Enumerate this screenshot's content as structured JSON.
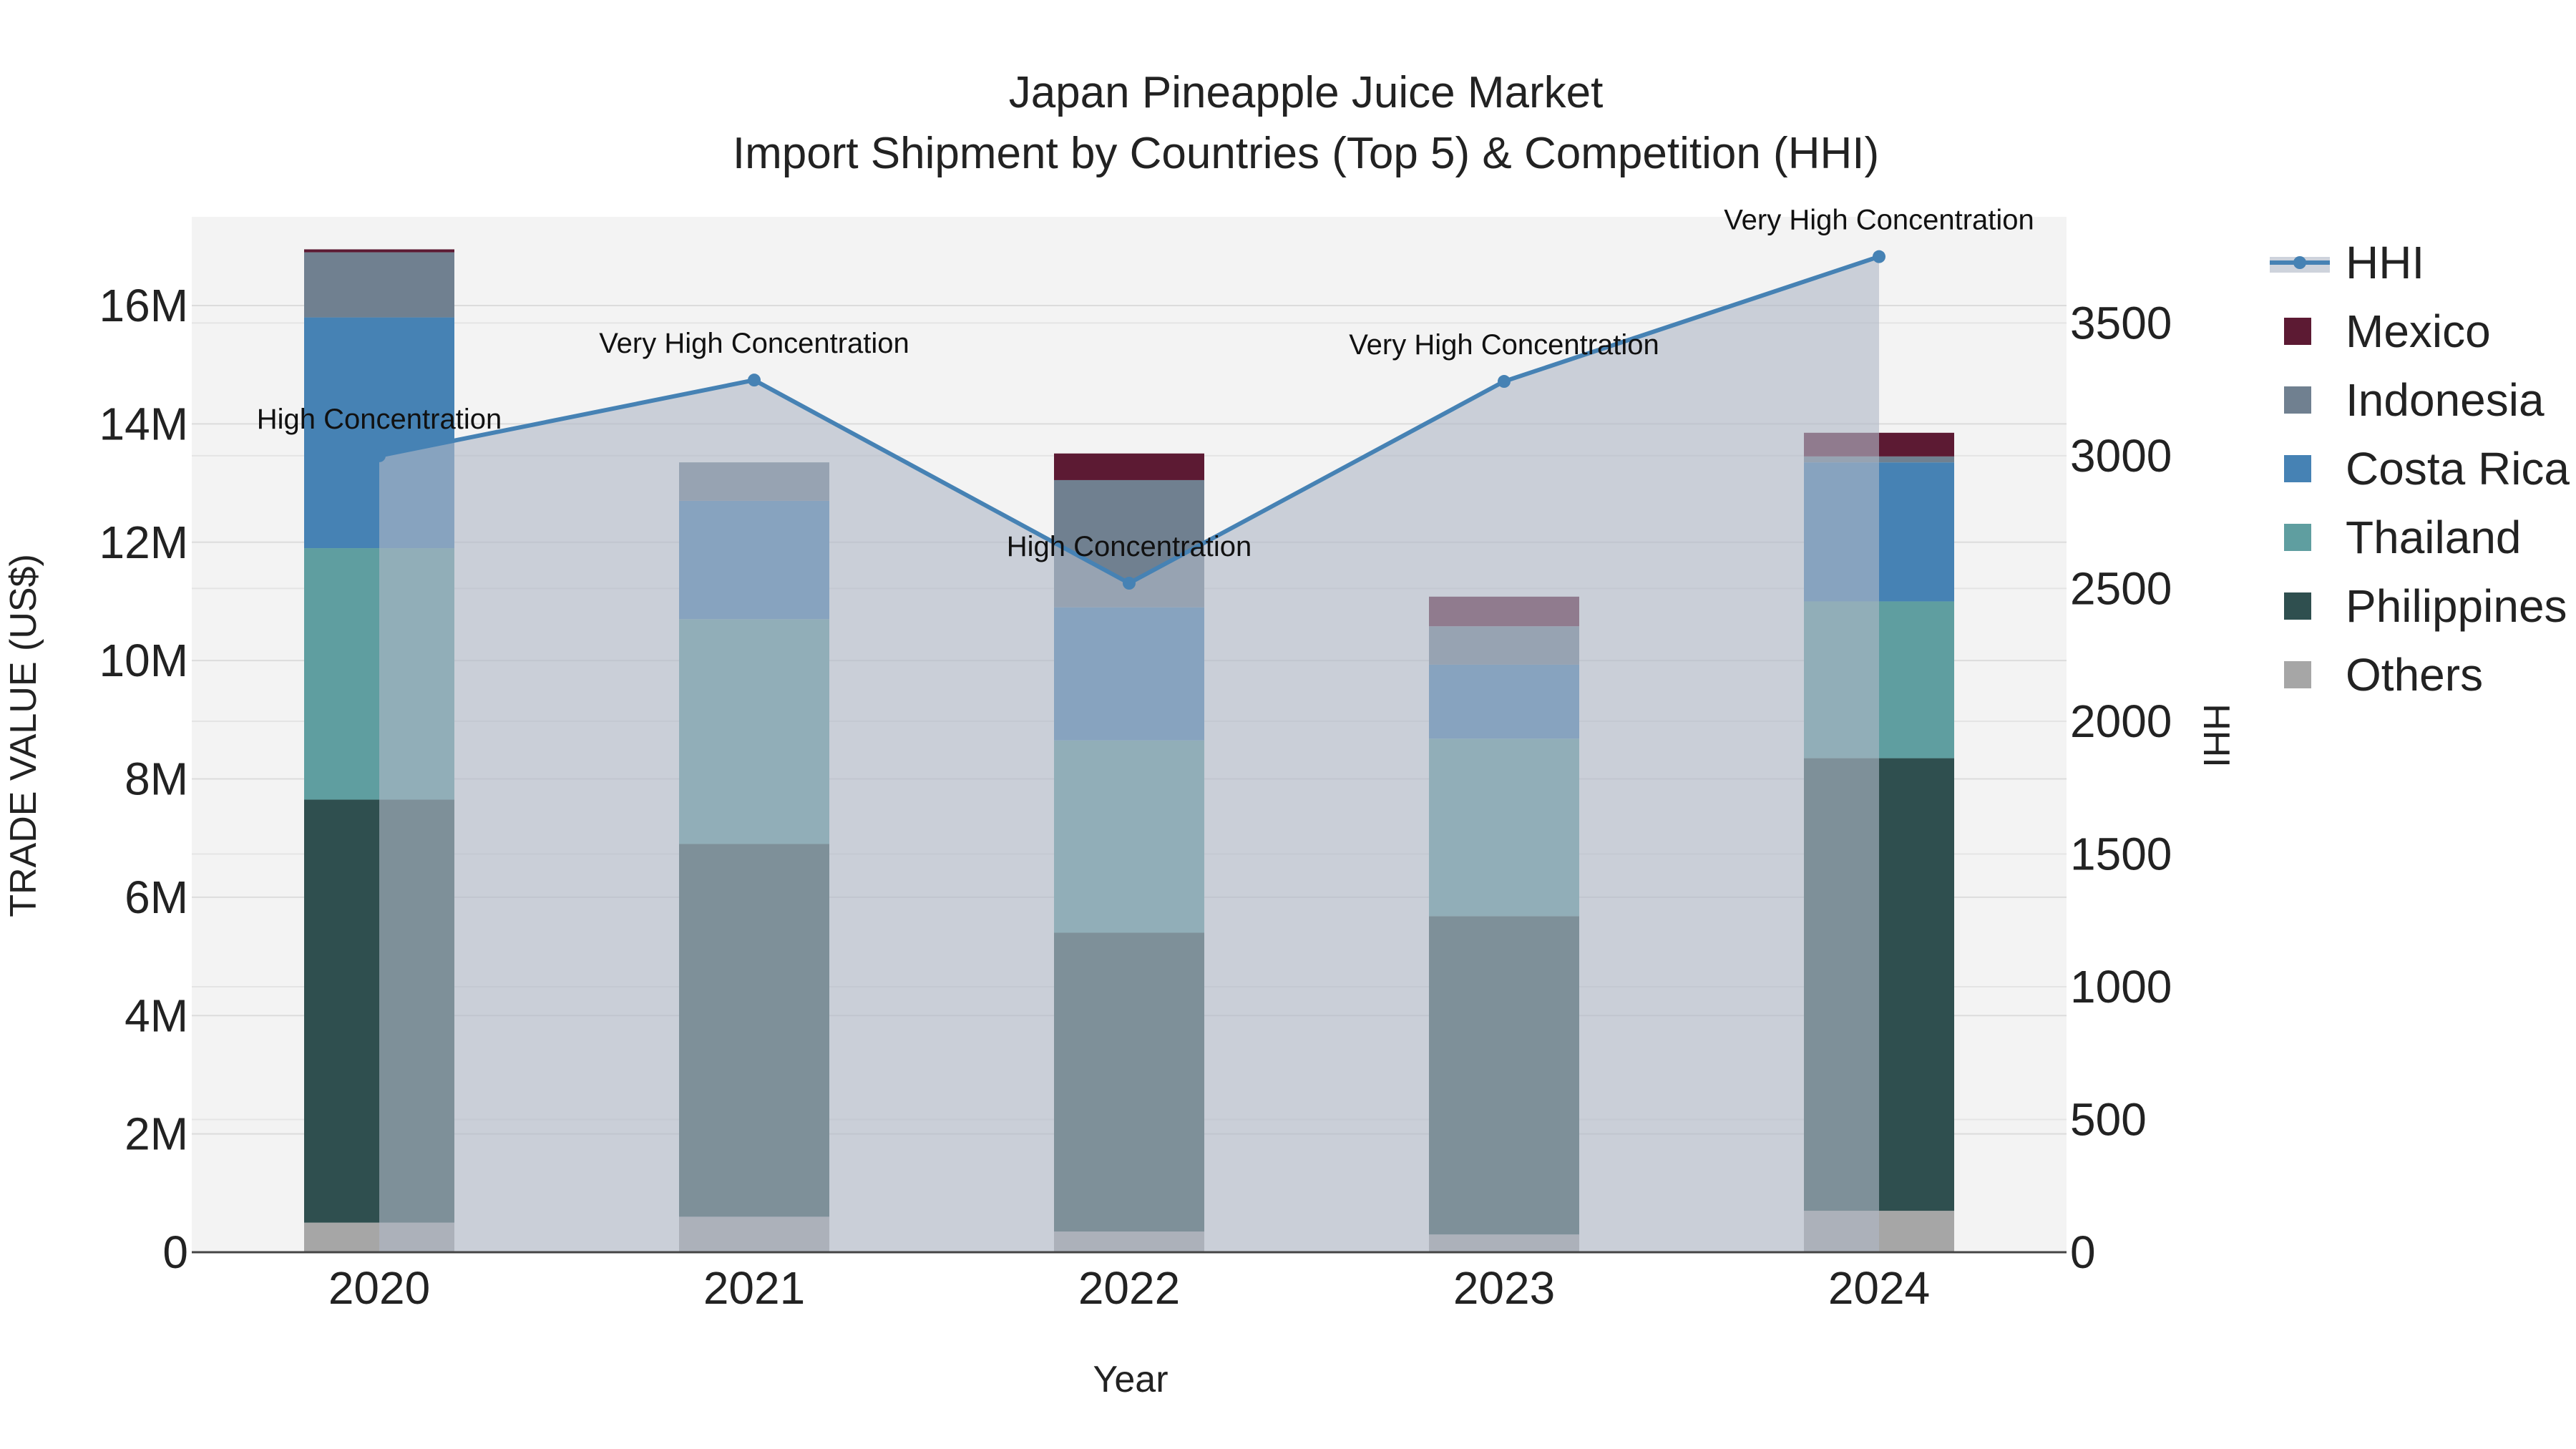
{
  "chart_data": {
    "type": "bar",
    "title": "Japan Pineapple Juice Market",
    "subtitle": "Import Shipment by Countries (Top 5) & Competition (HHI)",
    "xlabel": "Year",
    "ylabel": "TRADE VALUE (US$)",
    "y2label": "HHI",
    "categories": [
      "2020",
      "2021",
      "2022",
      "2023",
      "2024"
    ],
    "ylim": [
      0,
      17500000
    ],
    "y2lim": [
      0,
      3900
    ],
    "yticks": [
      {
        "value": 0,
        "label": "0"
      },
      {
        "value": 2000000,
        "label": "2M"
      },
      {
        "value": 4000000,
        "label": "4M"
      },
      {
        "value": 6000000,
        "label": "6M"
      },
      {
        "value": 8000000,
        "label": "8M"
      },
      {
        "value": 10000000,
        "label": "10M"
      },
      {
        "value": 12000000,
        "label": "12M"
      },
      {
        "value": 14000000,
        "label": "14M"
      },
      {
        "value": 16000000,
        "label": "16M"
      }
    ],
    "y2ticks": [
      {
        "value": 0,
        "label": "0"
      },
      {
        "value": 500,
        "label": "500"
      },
      {
        "value": 1000,
        "label": "1000"
      },
      {
        "value": 1500,
        "label": "1500"
      },
      {
        "value": 2000,
        "label": "2000"
      },
      {
        "value": 2500,
        "label": "2500"
      },
      {
        "value": 3000,
        "label": "3000"
      },
      {
        "value": 3500,
        "label": "3500"
      }
    ],
    "stacked": true,
    "series": [
      {
        "name": "Others",
        "color": "#a6a6a6",
        "values": [
          500000,
          600000,
          350000,
          300000,
          700000
        ]
      },
      {
        "name": "Philippines",
        "color": "#2f4f4f",
        "values": [
          7150000,
          6300000,
          5050000,
          5380000,
          7650000
        ]
      },
      {
        "name": "Thailand",
        "color": "#5f9ea0",
        "values": [
          4250000,
          3800000,
          3250000,
          3000000,
          2650000
        ]
      },
      {
        "name": "Costa Rica",
        "color": "#4682b4",
        "values": [
          3900000,
          2000000,
          2250000,
          1250000,
          2350000
        ]
      },
      {
        "name": "Indonesia",
        "color": "#708090",
        "values": [
          1100000,
          650000,
          2150000,
          650000,
          100000
        ]
      },
      {
        "name": "Mexico",
        "color": "#5c1a33",
        "values": [
          50000,
          0,
          450000,
          500000,
          400000
        ]
      }
    ],
    "hhi": {
      "name": "HHI",
      "color": "#4682b4",
      "values": [
        3000,
        3285,
        2520,
        3280,
        3750
      ],
      "annotations": [
        "High Concentration",
        "Very High Concentration",
        "High Concentration",
        "Very High Concentration",
        "Very High Concentration"
      ]
    },
    "legend_position": "right",
    "grid": true
  }
}
